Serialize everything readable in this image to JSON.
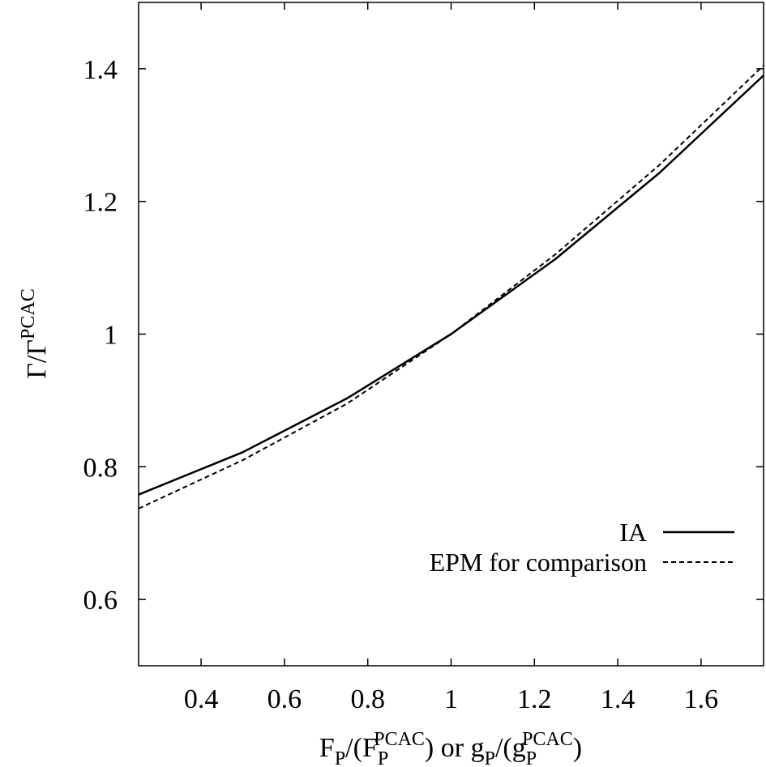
{
  "chart_data": {
    "type": "line",
    "xlabel_parts": {
      "t1": "F",
      "s1": "P",
      "t2": "/(F",
      "s2": "P",
      "p2": "PCAC",
      "t3": ") or g",
      "s3": "P",
      "t4": "/(g",
      "s4": "P",
      "p4": "PCAC",
      "t5": ")"
    },
    "ylabel_parts": {
      "t1": "Γ/Γ",
      "p1": "PCAC"
    },
    "xlim": [
      0.25,
      1.75
    ],
    "ylim": [
      0.5,
      1.5
    ],
    "xticks": [
      0.4,
      0.6,
      0.8,
      1,
      1.2,
      1.4,
      1.6
    ],
    "xtick_labels": [
      "0.4",
      "0.6",
      "0.8",
      "1",
      "1.2",
      "1.4",
      "1.6"
    ],
    "yticks": [
      0.6,
      0.8,
      1,
      1.2,
      1.4
    ],
    "ytick_labels": [
      "0.6",
      "0.8",
      "1",
      "1.2",
      "1.4"
    ],
    "legend_position": "lower-right",
    "series": [
      {
        "name": "IA",
        "style": "solid",
        "color": "#000000",
        "x": [
          0.25,
          0.5,
          0.75,
          1.0,
          1.25,
          1.5,
          1.75
        ],
        "y": [
          0.758,
          0.822,
          0.903,
          1.0,
          1.113,
          1.243,
          1.39
        ]
      },
      {
        "name": "EPM for comparison",
        "style": "dashed",
        "color": "#000000",
        "x": [
          0.25,
          0.5,
          0.75,
          1.0,
          1.25,
          1.5,
          1.75
        ],
        "y": [
          0.737,
          0.81,
          0.895,
          1.0,
          1.12,
          1.255,
          1.405
        ]
      }
    ]
  }
}
